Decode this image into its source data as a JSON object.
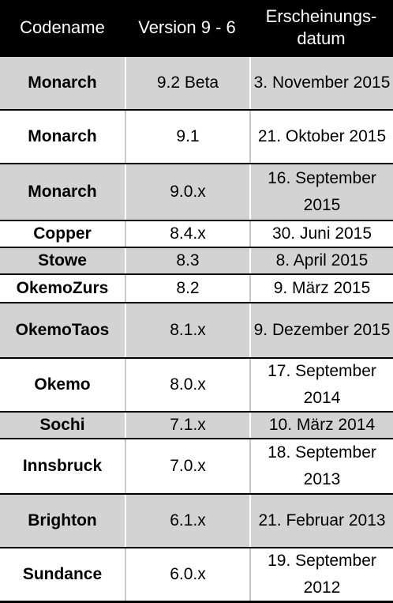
{
  "header": {
    "codename": "Codename",
    "version": "Version 9 - 6",
    "date": "Erscheinungs-datum"
  },
  "rows": [
    {
      "codename": "Monarch",
      "version": "9.2 Beta",
      "date": "3. November 2015"
    },
    {
      "codename": "Monarch",
      "version": "9.1",
      "date": "21. Oktober 2015"
    },
    {
      "codename": "Monarch",
      "version": "9.0.x",
      "date": "16. September 2015"
    },
    {
      "codename": "Copper",
      "version": "8.4.x",
      "date": "30. Juni 2015"
    },
    {
      "codename": "Stowe",
      "version": "8.3",
      "date": "8. April 2015"
    },
    {
      "codename": "OkemoZurs",
      "version": "8.2",
      "date": "9. März 2015"
    },
    {
      "codename": "OkemoTaos",
      "version": "8.1.x",
      "date": "9. Dezember 2015"
    },
    {
      "codename": "Okemo",
      "version": "8.0.x",
      "date": "17. September 2014"
    },
    {
      "codename": "Sochi",
      "version": "7.1.x",
      "date": "10. März 2014"
    },
    {
      "codename": "Innsbruck",
      "version": "7.0.x",
      "date": "18. September 2013"
    },
    {
      "codename": "Brighton",
      "version": "6.1.x",
      "date": "21. Februar 2013"
    },
    {
      "codename": "Sundance",
      "version": "6.0.x",
      "date": "19. September 2012"
    }
  ],
  "colors": {
    "header_bg": "#000000",
    "header_text": "#ffffff",
    "row_shaded": "#d3d3d3",
    "row_plain": "#ffffff"
  }
}
